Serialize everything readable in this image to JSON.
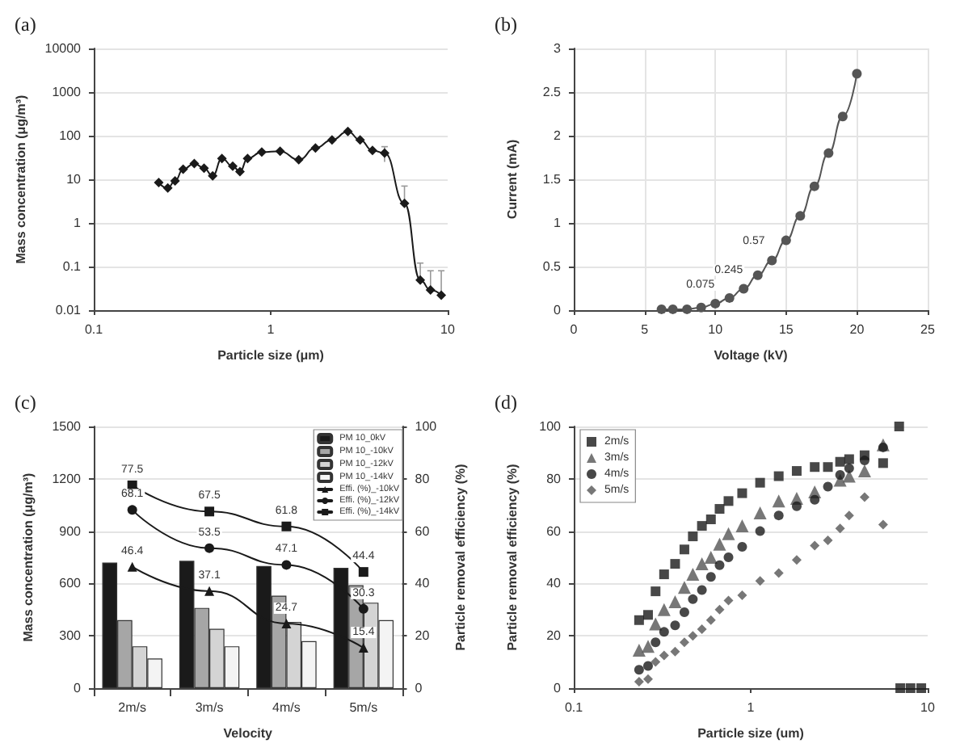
{
  "chart_data": [
    {
      "type": "line",
      "title": "(a)",
      "xlabel": "Particle size (μm)",
      "ylabel": "Mass concentration (μg/m³)",
      "log": "xy",
      "grid": "y",
      "color": "#1a1a1a",
      "marker": "diamond",
      "x": [
        0.233,
        0.262,
        0.288,
        0.32,
        0.37,
        0.42,
        0.47,
        0.53,
        0.61,
        0.67,
        0.74,
        0.89,
        1.13,
        1.44,
        1.79,
        2.22,
        2.73,
        3.2,
        3.76,
        4.4,
        5.7,
        7.0,
        8.0,
        9.2
      ],
      "values": [
        8.4,
        6.3,
        9.2,
        17,
        23,
        18,
        12,
        30,
        20,
        15,
        30,
        42,
        44,
        28,
        52,
        80,
        125,
        80,
        46,
        40,
        2.8,
        0.049,
        0.029,
        0.022
      ],
      "errors": [
        null,
        null,
        null,
        null,
        null,
        null,
        null,
        null,
        null,
        null,
        null,
        null,
        null,
        null,
        null,
        null,
        null,
        null,
        null,
        [
          25,
          56
        ],
        [
          2.8,
          7
        ],
        [
          0.049,
          0.12
        ],
        [
          0.029,
          0.08
        ],
        [
          0.022,
          0.08
        ]
      ],
      "xlim": [
        0.1,
        10
      ],
      "xticks": [
        0.1,
        1,
        10
      ],
      "ylim": [
        0.01,
        10000
      ],
      "yticks": [
        0.01,
        0.1,
        1,
        10,
        100,
        1000,
        10000
      ]
    },
    {
      "type": "line",
      "title": "(b)",
      "xlabel": "Voltage (kV)",
      "ylabel": "Current (mA)",
      "grid": true,
      "color": "#555555",
      "marker": "circle",
      "x": [
        6.2,
        7,
        8,
        9,
        10,
        11,
        12,
        13,
        14,
        15,
        16,
        17,
        18,
        19,
        20
      ],
      "values": [
        0.01,
        0.01,
        0.01,
        0.03,
        0.075,
        0.14,
        0.245,
        0.4,
        0.57,
        0.8,
        1.08,
        1.42,
        1.8,
        2.22,
        2.71
      ],
      "value_labels": [
        null,
        null,
        null,
        null,
        "0.075",
        null,
        "0.245",
        null,
        "0.57",
        null,
        null,
        null,
        null,
        null,
        null
      ],
      "xlim": [
        0,
        25
      ],
      "xticks": [
        0,
        5,
        10,
        15,
        20,
        25
      ],
      "ylim": [
        0,
        3
      ],
      "yticks": [
        0,
        0.5,
        1,
        1.5,
        2,
        2.5,
        3
      ]
    },
    {
      "type": "bar",
      "title": "(c)",
      "xlabel": "Velocity",
      "ylabel": "Mass concentration (μg/m³)",
      "y2label": "Particle removal efficiency (%)",
      "grid": "y",
      "legend": "top right",
      "categories": [
        "2m/s",
        "3m/s",
        "4m/s",
        "5m/s"
      ],
      "series": [
        {
          "name": "PM 10_0kV",
          "color": "#1a1a1a",
          "values": [
            720,
            730,
            700,
            690
          ]
        },
        {
          "name": "PM 10_-10kV",
          "color": "#a6a6a6",
          "values": [
            390,
            460,
            530,
            590
          ]
        },
        {
          "name": "PM 10_-12kV",
          "color": "#d4d4d4",
          "values": [
            240,
            340,
            380,
            490
          ]
        },
        {
          "name": "PM 10_-14kV",
          "color": "#f4f4f4",
          "values": [
            170,
            240,
            270,
            390
          ]
        },
        {
          "name": "Effi. (%)_-10kV",
          "type": "line",
          "axis": "y2",
          "marker": "triangle",
          "color": "#1a1a1a",
          "values": [
            46.4,
            37.1,
            24.7,
            15.4
          ],
          "value_labels": [
            "46.4",
            "37.1",
            "24.7",
            "15.4"
          ]
        },
        {
          "name": "Effi. (%)_-12kV",
          "type": "line",
          "axis": "y2",
          "marker": "circle",
          "color": "#1a1a1a",
          "values": [
            68.1,
            53.5,
            47.1,
            30.3
          ],
          "value_labels": [
            "68.1",
            "53.5",
            "47.1",
            "30.3"
          ]
        },
        {
          "name": "Effi. (%)_-14kV",
          "type": "line",
          "axis": "y2",
          "marker": "square",
          "color": "#1a1a1a",
          "values": [
            77.5,
            67.5,
            61.8,
            44.4
          ],
          "value_labels": [
            "77.5",
            "67.5",
            "61.8",
            "44.4"
          ]
        }
      ],
      "ylim": [
        0,
        1500
      ],
      "yticks": [
        0,
        300,
        600,
        900,
        1200,
        1500
      ],
      "y2lim": [
        0,
        100
      ],
      "y2ticks": [
        0,
        20,
        40,
        60,
        80,
        100
      ]
    },
    {
      "type": "scatter",
      "title": "(d)",
      "xlabel": "Particle size (um)",
      "ylabel": "Particle removal efficiency (%)",
      "log": "x",
      "grid": "y",
      "legend": "top left",
      "series": [
        {
          "name": "2m/s",
          "color": "#1a1a1a",
          "marker": "square",
          "x": [
            0.234,
            0.263,
            0.29,
            0.324,
            0.374,
            0.422,
            0.471,
            0.53,
            0.596,
            0.667,
            0.749,
            0.895,
            1.13,
            1.44,
            1.82,
            2.3,
            2.73,
            3.2,
            3.6,
            4.4,
            5.6,
            6.9,
            7.0,
            8.0,
            9.2
          ],
          "values": [
            26,
            28,
            37,
            43.5,
            47.5,
            53,
            58,
            62,
            64.5,
            68.5,
            71.5,
            74.5,
            78.5,
            81,
            83,
            84.5,
            84.5,
            86.5,
            87.5,
            89,
            86,
            100,
            0,
            0,
            0
          ]
        },
        {
          "name": "3m/s",
          "color": "#555555",
          "marker": "triangle",
          "x": [
            0.234,
            0.263,
            0.29,
            0.324,
            0.374,
            0.422,
            0.471,
            0.53,
            0.596,
            0.667,
            0.749,
            0.895,
            1.13,
            1.44,
            1.82,
            2.3,
            3.2,
            3.6,
            4.4,
            5.6
          ],
          "values": [
            14.5,
            16,
            24.5,
            30,
            33,
            38.5,
            43.5,
            47.5,
            50,
            55,
            59,
            62,
            67,
            71.5,
            72.5,
            75,
            79.5,
            81,
            83,
            93
          ]
        },
        {
          "name": "4m/s",
          "color": "#1a1a1a",
          "marker": "circle",
          "x": [
            0.234,
            0.263,
            0.29,
            0.324,
            0.374,
            0.422,
            0.471,
            0.53,
            0.596,
            0.667,
            0.749,
            0.895,
            1.13,
            1.44,
            1.82,
            2.3,
            2.73,
            3.2,
            3.6,
            4.4,
            5.6
          ],
          "values": [
            7,
            8.5,
            17.5,
            21.5,
            24,
            29,
            34,
            37.5,
            42.5,
            47,
            50,
            54,
            60,
            66,
            69.5,
            72,
            77,
            81.5,
            84,
            87,
            92
          ]
        },
        {
          "name": "5m/s",
          "color": "#555555",
          "marker": "diamond",
          "x": [
            0.234,
            0.263,
            0.29,
            0.324,
            0.374,
            0.422,
            0.471,
            0.53,
            0.596,
            0.667,
            0.749,
            0.895,
            1.13,
            1.44,
            1.82,
            2.3,
            2.73,
            3.2,
            3.6,
            4.4,
            5.6
          ],
          "values": [
            2.5,
            3.5,
            10,
            12.5,
            14,
            17.5,
            20,
            22.5,
            26,
            30,
            33.5,
            35.5,
            41,
            44,
            49,
            54.5,
            56.5,
            61,
            66,
            73,
            62.5
          ]
        }
      ],
      "xlim": [
        0.1,
        10
      ],
      "xticks": [
        0.1,
        1,
        10
      ],
      "ylim": [
        0,
        100
      ],
      "yticks": [
        0,
        20,
        40,
        60,
        80,
        100
      ]
    }
  ]
}
